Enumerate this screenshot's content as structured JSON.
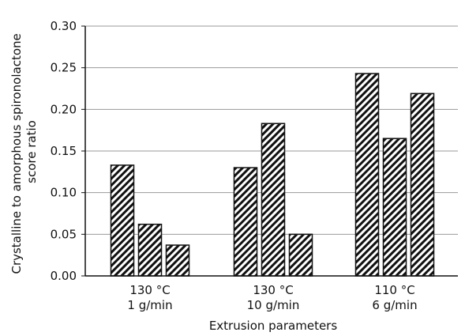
{
  "chart_data": {
    "type": "bar",
    "categories": [
      [
        "130 °C",
        "1 g/min"
      ],
      [
        "130 °C",
        "10 g/min"
      ],
      [
        "110 °C",
        "6 g/min"
      ]
    ],
    "series": [
      {
        "values": [
          0.133,
          0.13,
          0.243
        ]
      },
      {
        "values": [
          0.062,
          0.183,
          0.165
        ]
      },
      {
        "values": [
          0.037,
          0.05,
          0.219
        ]
      }
    ],
    "xlabel": "Extrusion parameters",
    "ylabel": [
      "Crystalline to amorphous spironolactone",
      "score ratio"
    ],
    "ylim": [
      0,
      0.3
    ],
    "yticks": [
      "0.00",
      "0.05",
      "0.10",
      "0.15",
      "0.20",
      "0.25",
      "0.30"
    ],
    "grid": true,
    "bar_fill": "diagonal-hatch",
    "colors": {
      "bar_stroke": "#111111",
      "grid": "#999999",
      "axis": "#111111"
    }
  }
}
